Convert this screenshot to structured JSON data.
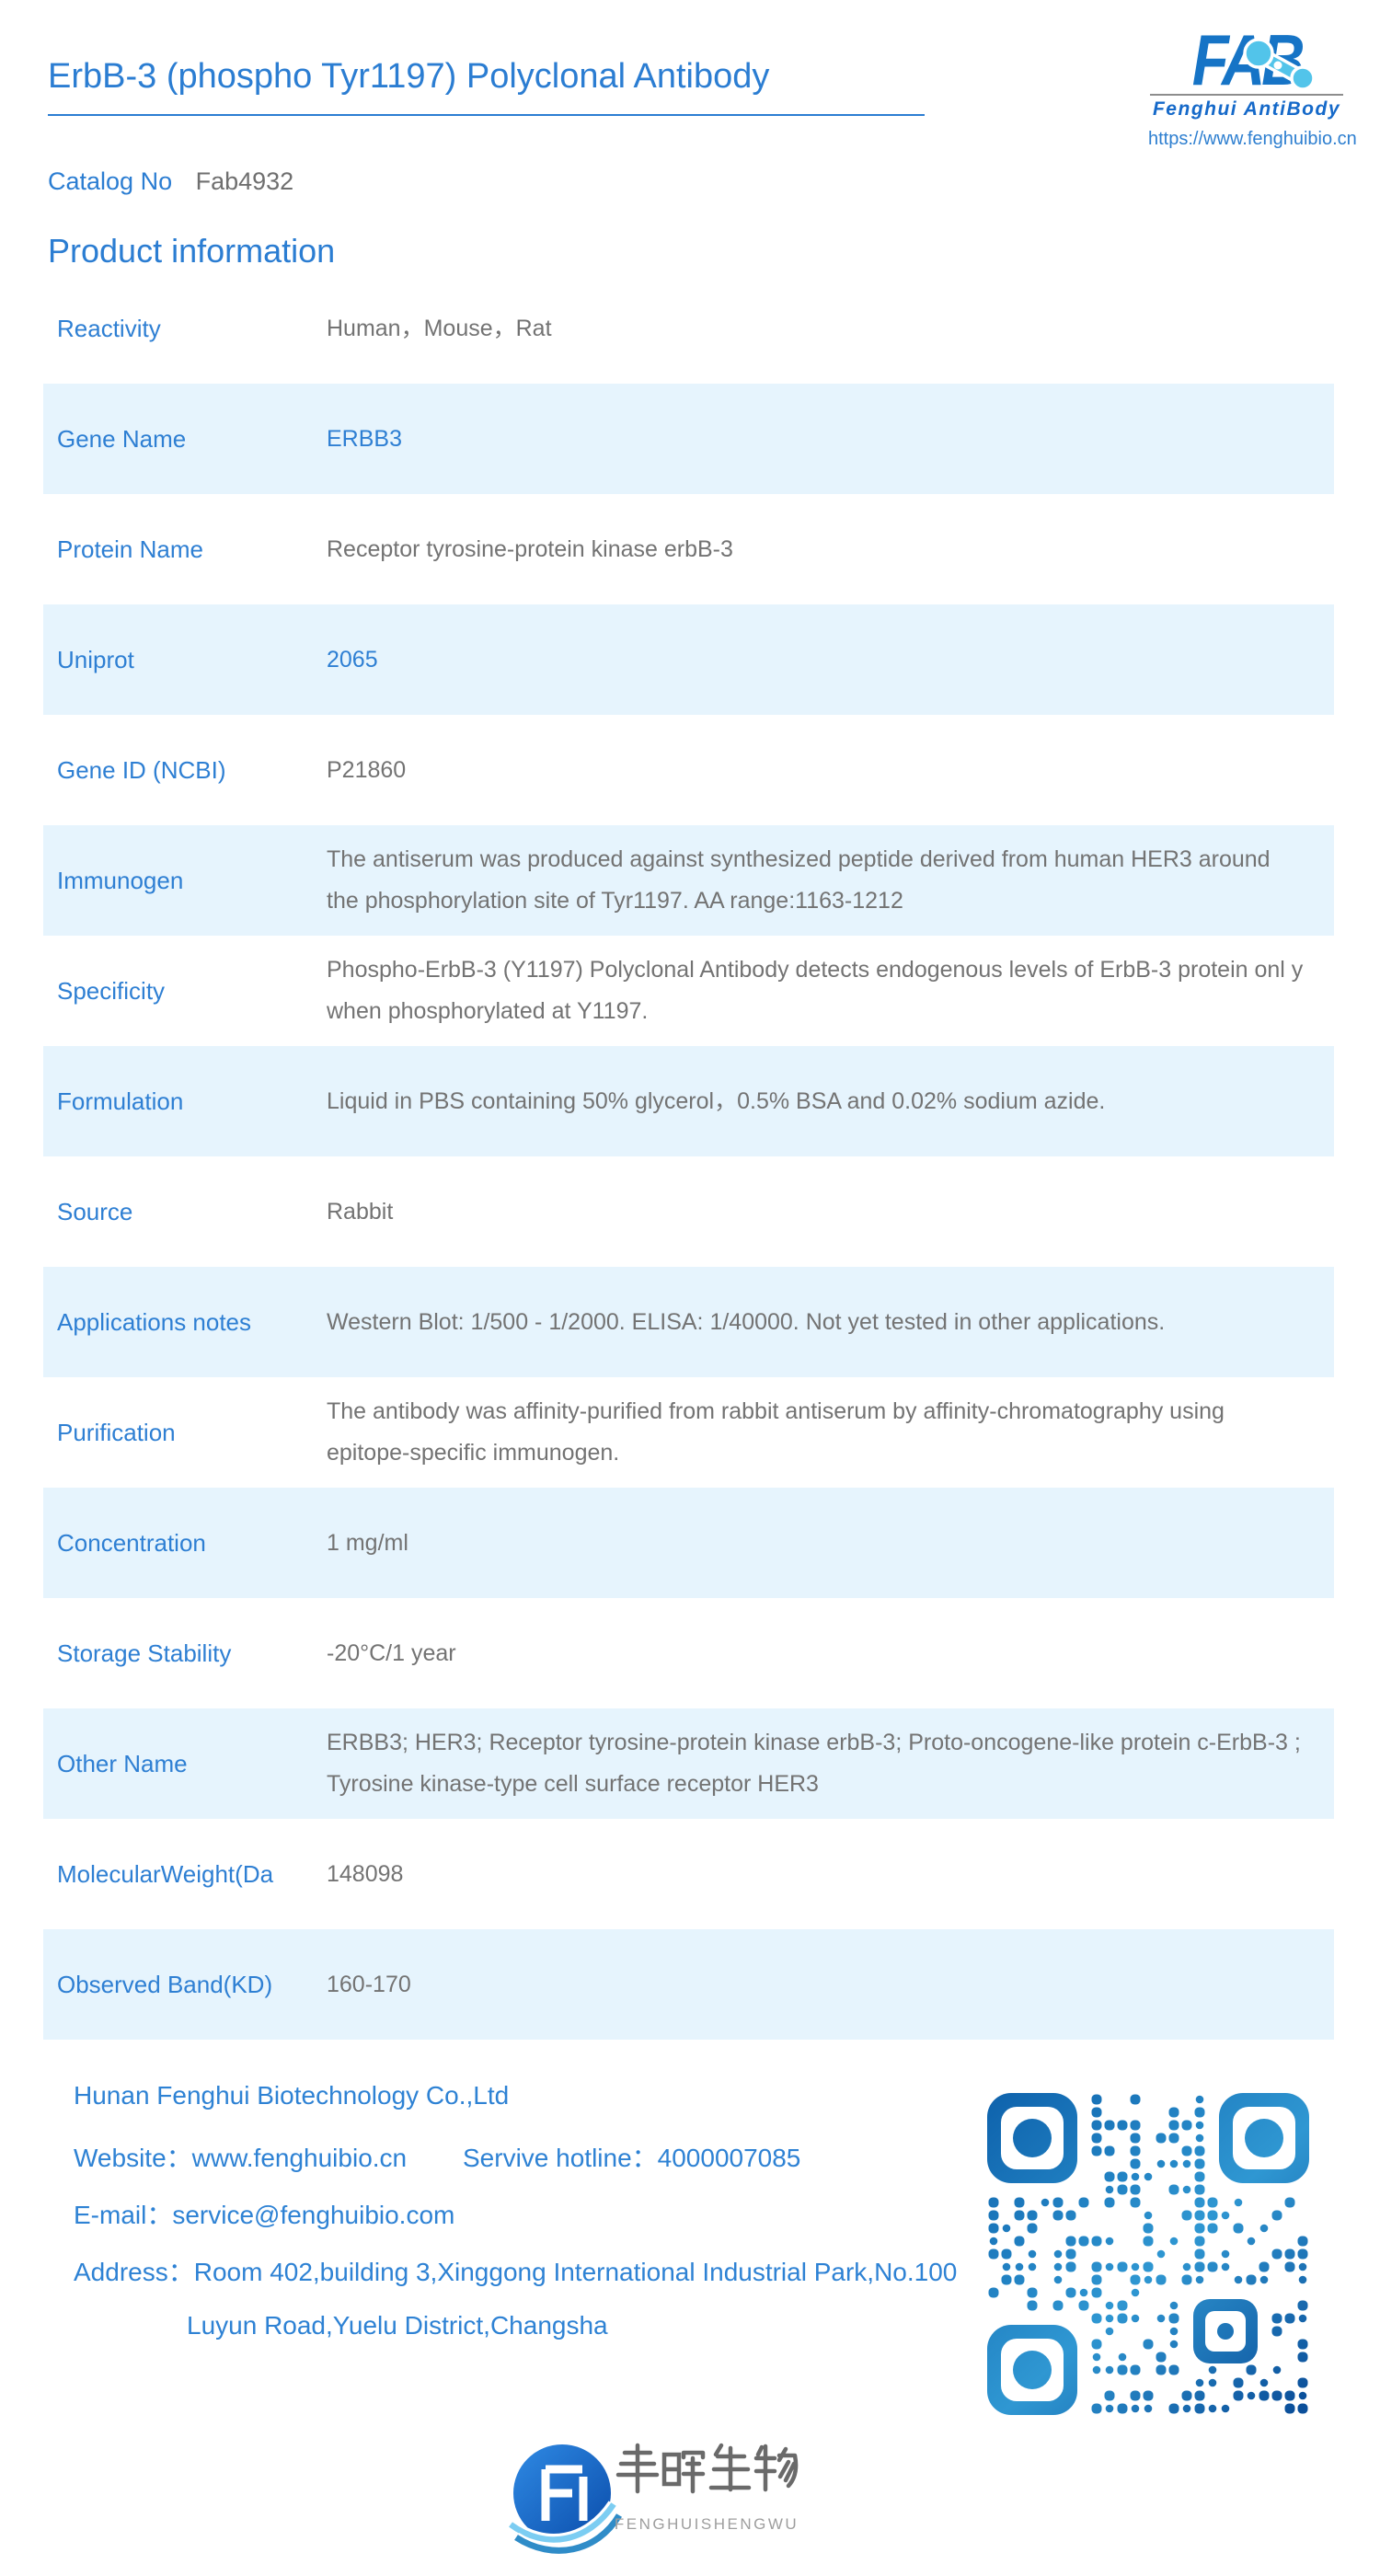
{
  "header": {
    "title": "ErbB-3 (phospho Tyr1197) Polyclonal Antibody",
    "catalog_label": "Catalog No",
    "catalog_value": "Fab4932",
    "logo": {
      "brand": "FAB",
      "tagline": "Fenghui AntiBody",
      "url": "https://www.fenghuibio.cn"
    }
  },
  "section": {
    "title": "Product information"
  },
  "table": {
    "rows": [
      {
        "label": "Reactivity",
        "value": "Human，Mouse，Rat"
      },
      {
        "label": "Gene Name",
        "value": "ERBB3"
      },
      {
        "label": "Protein Name",
        "value": "Receptor tyrosine-protein kinase erbB-3"
      },
      {
        "label": "Uniprot",
        "value": "2065"
      },
      {
        "label": "Gene ID (NCBI)",
        "value": "P21860"
      },
      {
        "label": "Immunogen",
        "value": "The antiserum was produced against synthesized peptide derived from human HER3 around the phosphorylation site of Tyr1197. AA range:1163-1212"
      },
      {
        "label": "Specificity",
        "value": "Phospho-ErbB-3 (Y1197) Polyclonal Antibody detects endogenous levels of ErbB-3 protein onl y when phosphorylated at Y1197."
      },
      {
        "label": "Formulation",
        "value": "Liquid in PBS containing 50% glycerol，0.5% BSA and 0.02% sodium azide."
      },
      {
        "label": "Source",
        "value": "Rabbit"
      },
      {
        "label": "Applications notes",
        "value": "Western Blot: 1/500 - 1/2000. ELISA: 1/40000. Not yet tested in other applications."
      },
      {
        "label": "Purification",
        "value": "The antibody was affinity-purified from rabbit antiserum by affinity-chromatography using epitope-specific immunogen."
      },
      {
        "label": "Concentration",
        "value": "1 mg/ml"
      },
      {
        "label": "Storage Stability",
        "value": "-20°C/1 year"
      },
      {
        "label": "Other Name",
        "value": "ERBB3; HER3; Receptor tyrosine-protein kinase erbB-3; Proto-oncogene-like protein c-ErbB-3 ; Tyrosine kinase-type cell surface receptor HER3"
      },
      {
        "label": "MolecularWeight(Da",
        "value": "148098"
      },
      {
        "label": "Observed Band(KD)",
        "value": "160-170"
      }
    ]
  },
  "footer": {
    "company": "Hunan Fenghui Biotechnology Co.,Ltd",
    "website_label": "Website：",
    "website": "www.fenghuibio.cn",
    "hotline_label": "Servive hotline：",
    "hotline": "4000007085",
    "email_label": "E-mail：",
    "email": "service@fenghuibio.com",
    "address_label": "Address：",
    "address_line1": "Room 402,building 3,Xinggong International Industrial Park,No.100",
    "address_line2": "Luyun Road,Yuelu District,Changsha"
  },
  "footer_logo": {
    "chinese_name": "丰晖生物",
    "latin_name": "FENGHUISHENGWU"
  },
  "icons": {
    "qr": "qr-code",
    "molecule": "molecule-icon"
  },
  "colors": {
    "accent_blue": "#2b7dd2",
    "label_blue": "#2e7fd3",
    "logo_blue": "#1674c6",
    "molecule_light_blue": "#52c4ea",
    "row_highlight": "#e6f4fd",
    "value_gray": "#737373",
    "qr_dark": "#0e62ac",
    "qr_light": "#2f97d2"
  }
}
